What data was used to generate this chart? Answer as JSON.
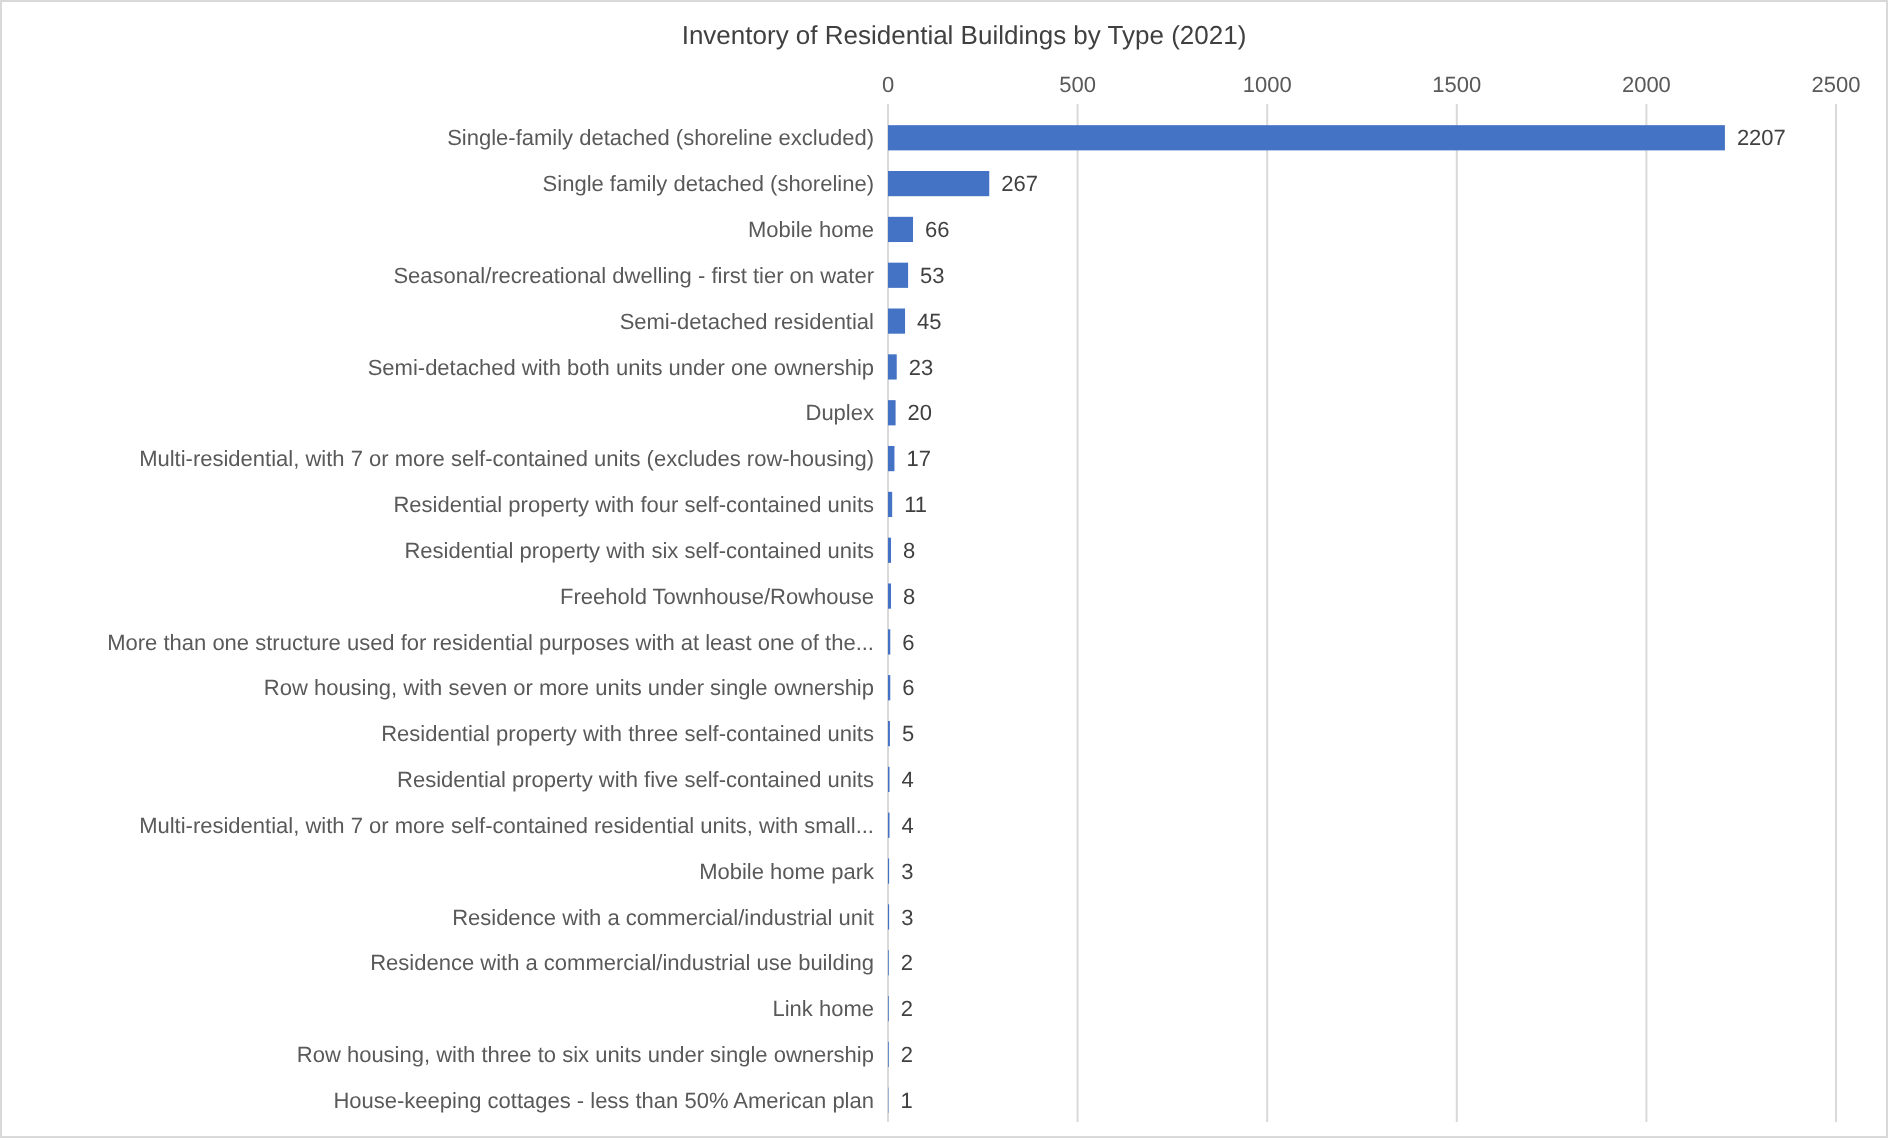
{
  "chart_data": {
    "type": "bar",
    "orientation": "horizontal",
    "title": "Inventory of Residential Buildings by Type (2021)",
    "categories": [
      "Single-family detached (shoreline excluded)",
      "Single family detached (shoreline)",
      "Mobile home",
      "Seasonal/recreational dwelling - first tier on water",
      "Semi-detached residential",
      "Semi-detached with both units under one ownership",
      "Duplex",
      "Multi-residential, with 7 or more self-contained units (excludes row-housing)",
      "Residential property with four self-contained units",
      "Residential property with six self-contained units",
      "Freehold Townhouse/Rowhouse",
      "More than one structure used for residential purposes with at least one of the...",
      "Row housing, with seven or more units under single ownership",
      "Residential property with three self-contained units",
      "Residential property with five self-contained units",
      "Multi-residential, with 7 or more self-contained residential units, with small...",
      "Mobile home park",
      "Residence with a commercial/industrial unit",
      "Residence with a commercial/industrial use building",
      "Link home",
      "Row housing, with three to six units under single ownership",
      "House-keeping cottages - less than 50% American plan"
    ],
    "values": [
      2207,
      267,
      66,
      53,
      45,
      23,
      20,
      17,
      11,
      8,
      8,
      6,
      6,
      5,
      4,
      4,
      3,
      3,
      2,
      2,
      2,
      1
    ],
    "color": "#4472c4",
    "xlim": [
      0,
      2500
    ],
    "xticks": [
      0,
      500,
      1000,
      1500,
      2000,
      2500
    ],
    "grid": "x",
    "data_labels": true
  }
}
